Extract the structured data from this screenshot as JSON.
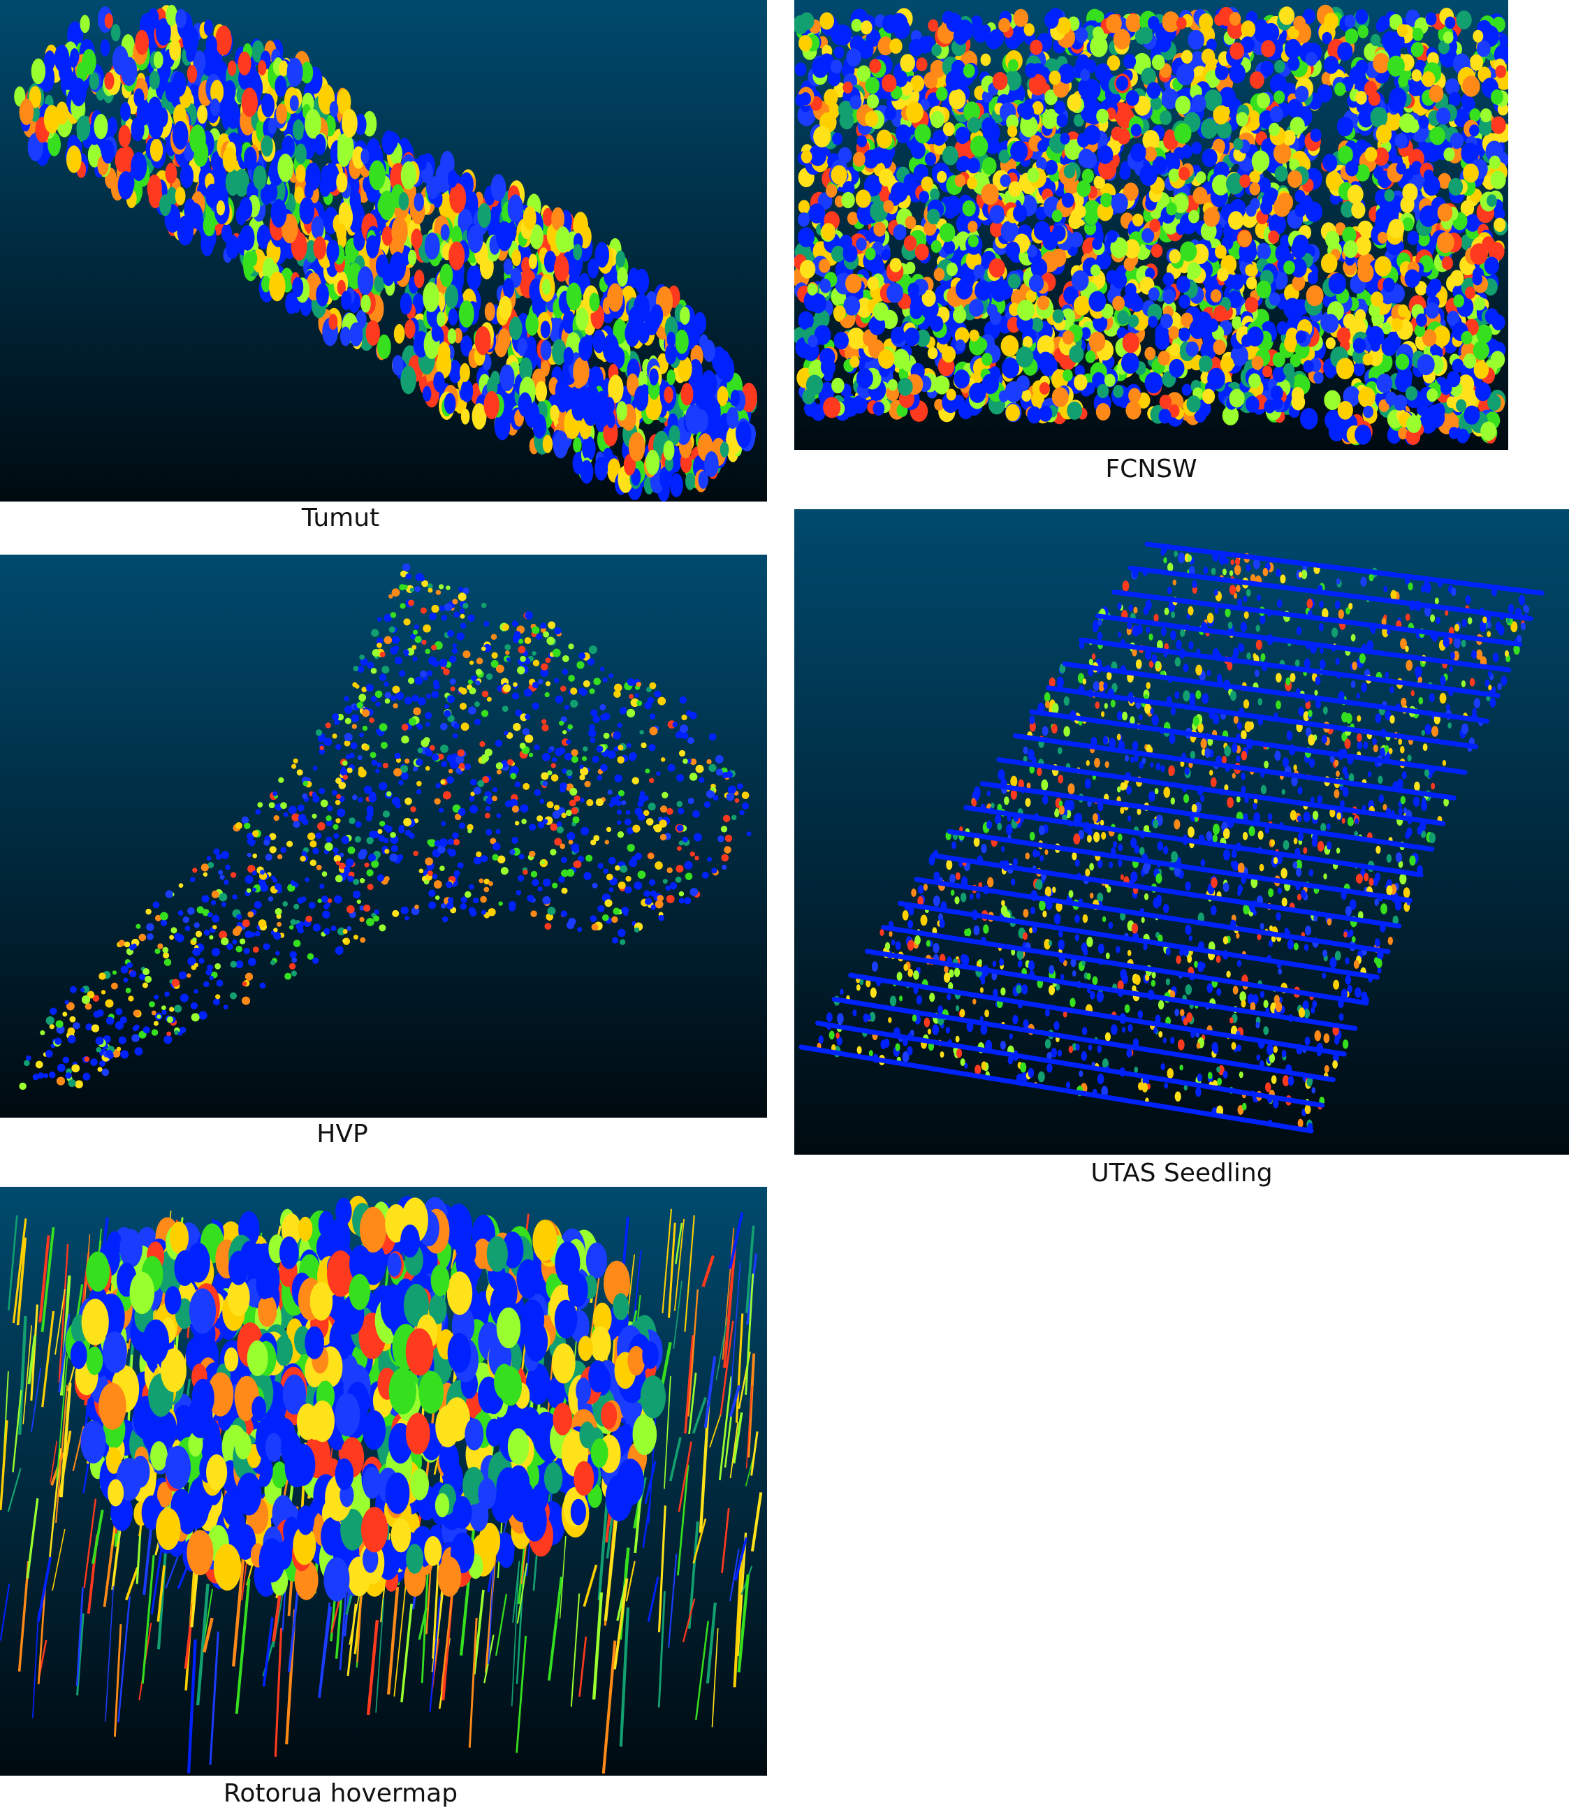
{
  "figure": {
    "panels": [
      {
        "id": "tumut",
        "caption": "Tumut",
        "shape": "diagonal-strip"
      },
      {
        "id": "fcnsw",
        "caption": "FCNSW",
        "shape": "two-blocks"
      },
      {
        "id": "hvp",
        "caption": "HVP",
        "shape": "irregular-polygon"
      },
      {
        "id": "utas",
        "caption": "UTAS Seedling",
        "shape": "tilted-rows"
      },
      {
        "id": "rotorua",
        "caption": "Rotorua hovermap",
        "shape": "dense-stems"
      }
    ],
    "colors": {
      "background_top": "#004a6e",
      "background_bottom": "#000a10",
      "segment_palette": [
        "#0022ff",
        "#1a3cff",
        "#36e01e",
        "#9aff2e",
        "#ffe21a",
        "#ff8a18",
        "#ff3a1e",
        "#12a070",
        "#ffd000"
      ]
    }
  }
}
